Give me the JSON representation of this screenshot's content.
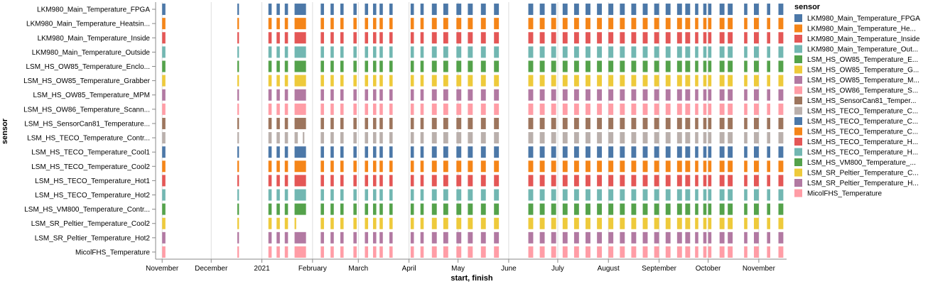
{
  "chart_data": {
    "type": "gantt",
    "title": "",
    "xlabel": "start, finish",
    "ylabel": "sensor",
    "x_range": [
      "2020-10-28",
      "2021-11-18"
    ],
    "x_ticks": [
      {
        "date": "2020-11-01",
        "label": "November"
      },
      {
        "date": "2020-12-01",
        "label": "December"
      },
      {
        "date": "2021-01-01",
        "label": "2021"
      },
      {
        "date": "2021-02-01",
        "label": "February"
      },
      {
        "date": "2021-03-01",
        "label": "March"
      },
      {
        "date": "2021-04-01",
        "label": "April"
      },
      {
        "date": "2021-05-01",
        "label": "May"
      },
      {
        "date": "2021-06-01",
        "label": "June"
      },
      {
        "date": "2021-07-01",
        "label": "July"
      },
      {
        "date": "2021-08-01",
        "label": "August"
      },
      {
        "date": "2021-09-01",
        "label": "September"
      },
      {
        "date": "2021-10-01",
        "label": "October"
      },
      {
        "date": "2021-11-01",
        "label": "November"
      }
    ],
    "grid": true,
    "legend_title": "sensor",
    "legend_position": "right",
    "series": [
      {
        "name": "LKM980_Main_Temperature_FPGA",
        "label": "LKM980_Main_Temperature_FPGA",
        "legend_label": "LKM980_Main_Temperature_FPGA",
        "color": "#4c78a8"
      },
      {
        "name": "LKM980_Main_Temperature_Heatsink",
        "label": "LKM980_Main_Temperature_Heatsin...",
        "legend_label": "LKM980_Main_Temperature_He...",
        "color": "#f58518"
      },
      {
        "name": "LKM980_Main_Temperature_Inside",
        "label": "LKM980_Main_Temperature_Inside",
        "legend_label": "LKM980_Main_Temperature_Inside",
        "color": "#e45756"
      },
      {
        "name": "LKM980_Main_Temperature_Outside",
        "label": "LKM980_Main_Temperature_Outside",
        "legend_label": "LKM980_Main_Temperature_Out...",
        "color": "#72b7b2"
      },
      {
        "name": "LSM_HS_OW85_Temperature_Enclosure",
        "label": "LSM_HS_OW85_Temperature_Enclo...",
        "legend_label": "LSM_HS_OW85_Temperature_E...",
        "color": "#54a24b"
      },
      {
        "name": "LSM_HS_OW85_Temperature_Grabber",
        "label": "LSM_HS_OW85_Temperature_Grabber",
        "legend_label": "LSM_HS_OW85_Temperature_G...",
        "color": "#eeca3b"
      },
      {
        "name": "LSM_HS_OW85_Temperature_MPM",
        "label": "LSM_HS_OW85_Temperature_MPM",
        "legend_label": "LSM_HS_OW85_Temperature_M...",
        "color": "#b279a2"
      },
      {
        "name": "LSM_HS_OW86_Temperature_Scanner",
        "label": "LSM_HS_OW86_Temperature_Scann...",
        "legend_label": "LSM_HS_OW86_Temperature_S...",
        "color": "#ff9da6"
      },
      {
        "name": "LSM_HS_SensorCan81_Temperature",
        "label": "LSM_HS_SensorCan81_Temperature...",
        "legend_label": "LSM_HS_SensorCan81_Temper...",
        "color": "#9d755d"
      },
      {
        "name": "LSM_HS_TECO_Temperature_Controller",
        "label": "LSM_HS_TECO_Temperature_Contr...",
        "legend_label": "LSM_HS_TECO_Temperature_C...",
        "color": "#bab0ac"
      },
      {
        "name": "LSM_HS_TECO_Temperature_Cool1",
        "label": "LSM_HS_TECO_Temperature_Cool1",
        "legend_label": "LSM_HS_TECO_Temperature_C...",
        "color": "#4c78a8"
      },
      {
        "name": "LSM_HS_TECO_Temperature_Cool2",
        "label": "LSM_HS_TECO_Temperature_Cool2",
        "legend_label": "LSM_HS_TECO_Temperature_C...",
        "color": "#f58518"
      },
      {
        "name": "LSM_HS_TECO_Temperature_Hot1",
        "label": "LSM_HS_TECO_Temperature_Hot1",
        "legend_label": "LSM_HS_TECO_Temperature_H...",
        "color": "#e45756"
      },
      {
        "name": "LSM_HS_TECO_Temperature_Hot2",
        "label": "LSM_HS_TECO_Temperature_Hot2",
        "legend_label": "LSM_HS_TECO_Temperature_H...",
        "color": "#72b7b2"
      },
      {
        "name": "LSM_HS_VM800_Temperature_Controller",
        "label": "LSM_HS_VM800_Temperature_Contr...",
        "legend_label": "LSM_HS_VM800_Temperature_...",
        "color": "#54a24b"
      },
      {
        "name": "LSM_SR_Peltier_Temperature_Cool2",
        "label": "LSM_SR_Peltier_Temperature_Cool2",
        "legend_label": "LSM_SR_Peltier_Temperature_C...",
        "color": "#eeca3b"
      },
      {
        "name": "LSM_SR_Peltier_Temperature_Hot2",
        "label": "LSM_SR_Peltier_Temperature_Hot2",
        "legend_label": "LSM_SR_Peltier_Temperature_H...",
        "color": "#b279a2"
      },
      {
        "name": "MicolFHS_Temperature",
        "label": "MicolFHS_Temperature",
        "legend_label": "MicolFHS_Temperature",
        "color": "#ff9da6"
      }
    ],
    "intervals": [
      [
        "2020-11-01",
        "2020-11-03"
      ],
      [
        "2020-12-17",
        "2020-12-18"
      ],
      [
        "2021-01-05",
        "2021-01-07"
      ],
      [
        "2021-01-10",
        "2021-01-12"
      ],
      [
        "2021-01-15",
        "2021-01-17"
      ],
      [
        "2021-01-21",
        "2021-01-28"
      ],
      [
        "2021-02-06",
        "2021-02-08"
      ],
      [
        "2021-02-12",
        "2021-02-14"
      ],
      [
        "2021-02-18",
        "2021-02-20"
      ],
      [
        "2021-02-26",
        "2021-02-28"
      ],
      [
        "2021-03-05",
        "2021-03-07"
      ],
      [
        "2021-03-10",
        "2021-03-12"
      ],
      [
        "2021-03-14",
        "2021-03-16"
      ],
      [
        "2021-03-20",
        "2021-03-22"
      ],
      [
        "2021-04-02",
        "2021-04-04"
      ],
      [
        "2021-04-08",
        "2021-04-10"
      ],
      [
        "2021-04-15",
        "2021-04-18"
      ],
      [
        "2021-04-22",
        "2021-04-25"
      ],
      [
        "2021-04-30",
        "2021-05-03"
      ],
      [
        "2021-05-07",
        "2021-05-10"
      ],
      [
        "2021-05-15",
        "2021-05-18"
      ],
      [
        "2021-05-23",
        "2021-05-26"
      ],
      [
        "2021-06-13",
        "2021-06-16"
      ],
      [
        "2021-06-20",
        "2021-06-23"
      ],
      [
        "2021-06-27",
        "2021-06-30"
      ],
      [
        "2021-07-04",
        "2021-07-07"
      ],
      [
        "2021-07-11",
        "2021-07-14"
      ],
      [
        "2021-07-18",
        "2021-07-21"
      ],
      [
        "2021-07-25",
        "2021-07-28"
      ],
      [
        "2021-08-01",
        "2021-08-04"
      ],
      [
        "2021-08-08",
        "2021-08-11"
      ],
      [
        "2021-08-15",
        "2021-08-18"
      ],
      [
        "2021-08-22",
        "2021-08-25"
      ],
      [
        "2021-08-29",
        "2021-09-01"
      ],
      [
        "2021-09-05",
        "2021-09-08"
      ],
      [
        "2021-09-12",
        "2021-09-15"
      ],
      [
        "2021-09-17",
        "2021-09-20"
      ],
      [
        "2021-09-23",
        "2021-09-25"
      ],
      [
        "2021-09-28",
        "2021-09-30"
      ],
      [
        "2021-10-01",
        "2021-10-03"
      ],
      [
        "2021-10-08",
        "2021-10-11"
      ],
      [
        "2021-10-13",
        "2021-10-16"
      ],
      [
        "2021-10-23",
        "2021-10-25"
      ],
      [
        "2021-10-29",
        "2021-11-01"
      ],
      [
        "2021-11-06",
        "2021-11-08"
      ],
      [
        "2021-11-13",
        "2021-11-16"
      ]
    ],
    "exceptions": [
      {
        "series": 9,
        "remove": "2021-01-21",
        "add": [
          [
            "2021-01-21",
            "2021-01-23"
          ],
          [
            "2021-01-26",
            "2021-01-27"
          ]
        ]
      },
      {
        "series": 15,
        "remove": "2021-01-21",
        "add": [
          [
            "2021-01-21",
            "2021-01-22"
          ]
        ]
      }
    ]
  }
}
